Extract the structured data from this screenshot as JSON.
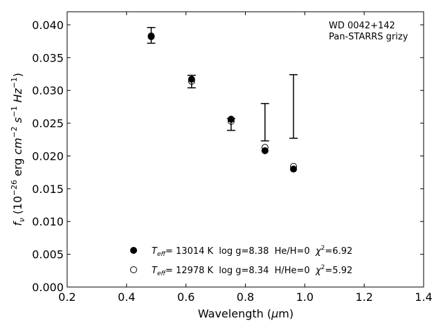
{
  "chart_data": {
    "type": "scatter",
    "xlabel": "Wavelength (μm)",
    "ylabel": "f_ν (10^-26 erg cm^-2 s^-1 Hz^-1)",
    "xlim": [
      0.2,
      1.4
    ],
    "ylim": [
      0.0,
      0.042
    ],
    "xticks": [
      "0.2",
      "0.4",
      "0.6",
      "0.8",
      "1.0",
      "1.2",
      "1.4"
    ],
    "yticks": [
      "0.000",
      "0.005",
      "0.010",
      "0.015",
      "0.020",
      "0.025",
      "0.030",
      "0.035",
      "0.040"
    ],
    "annotation": [
      "WD 0042+142",
      "Pan-STARRS grizy"
    ],
    "grid": false,
    "legend_position": "bottom-center",
    "observed": {
      "x": [
        0.483,
        0.619,
        0.752,
        0.866,
        0.962
      ],
      "y_low": [
        0.0372,
        0.0304,
        0.0239,
        0.0223,
        0.0227
      ],
      "y_high": [
        0.0396,
        0.0323,
        0.0257,
        0.028,
        0.0324
      ]
    },
    "series": [
      {
        "name": "T_eff= 13014 K  log g=8.38  He/H=0  χ²=6.92",
        "marker": "filled-circle",
        "x": [
          0.483,
          0.619,
          0.752,
          0.866,
          0.962
        ],
        "y": [
          0.0382,
          0.0317,
          0.0256,
          0.0208,
          0.018
        ]
      },
      {
        "name": "T_eff= 12978 K  log g=8.34  H/He=0  χ²=5.92",
        "marker": "open-circle",
        "x": [
          0.483,
          0.619,
          0.752,
          0.866,
          0.962
        ],
        "y": [
          0.0383,
          0.0314,
          0.0253,
          0.0213,
          0.0184
        ]
      }
    ]
  },
  "legend": {
    "entry1": {
      "teff_prefix": "T",
      "teff_sub": "eff",
      "teff_rest": "= 13014 K  log g=8.38  He/H=0  ",
      "chi": "χ",
      "chi_sup": "2",
      "chi_rest": "=6.92"
    },
    "entry2": {
      "teff_prefix": "T",
      "teff_sub": "eff",
      "teff_rest": "= 12978 K  log g=8.34  H/He=0  ",
      "chi": "χ",
      "chi_sup": "2",
      "chi_rest": "=5.92"
    }
  },
  "axis_text": {
    "xlabel_main": "Wavelength (",
    "xlabel_mu": "μ",
    "xlabel_unit": "m)",
    "ylabel_f": "f",
    "ylabel_nu": "ν",
    "ylabel_pre": " (10",
    "ylabel_exp1": "−26",
    "ylabel_erg": " erg ",
    "ylabel_cm": "cm",
    "ylabel_exp2": "−2",
    "ylabel_s": " s",
    "ylabel_exp3": "−1",
    "ylabel_hz": " Hz",
    "ylabel_exp4": "−1",
    "ylabel_close": ")"
  },
  "colors": {
    "marker": "#000000",
    "background": "#ffffff"
  }
}
